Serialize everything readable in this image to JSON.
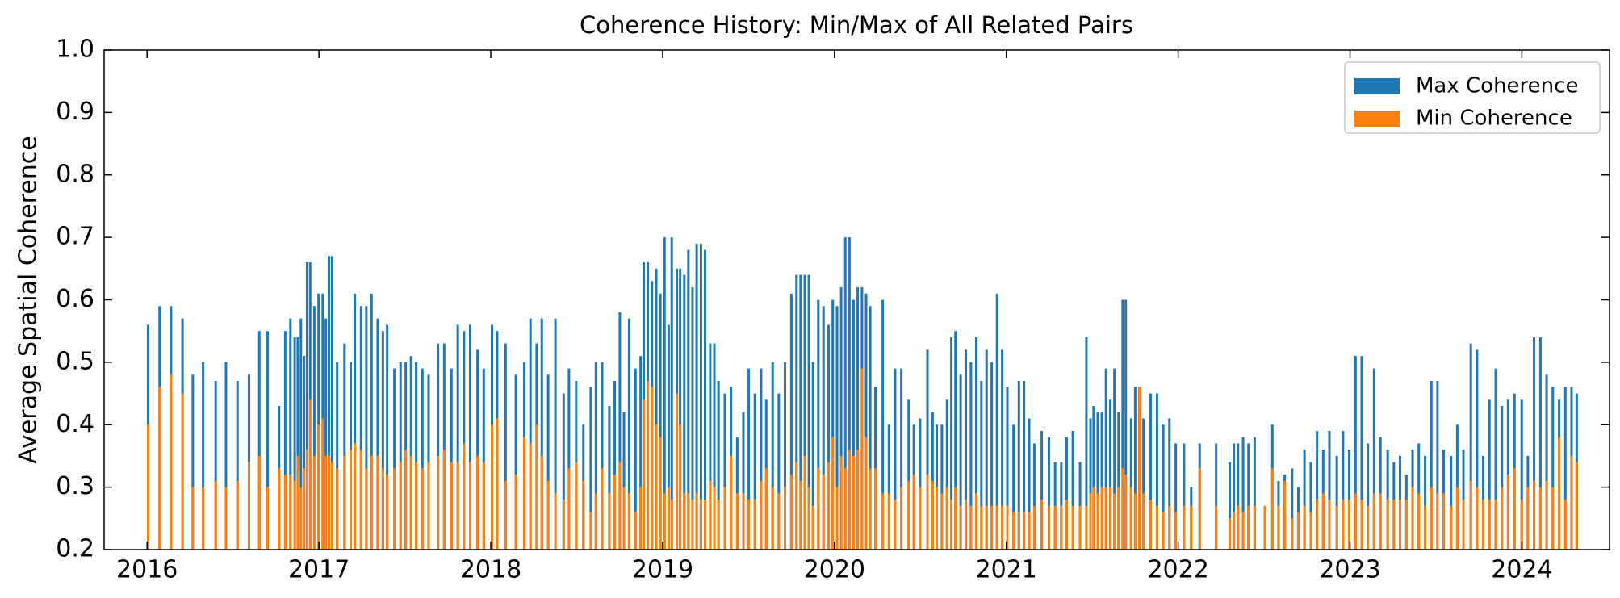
{
  "chart_data": {
    "type": "bar",
    "title": "Coherence History: Min/Max of All Related Pairs",
    "ylabel": "Average Spatial Coherence",
    "legend": "upper right",
    "xlim": [
      2015.75,
      2024.51
    ],
    "xticks": [
      2016,
      2017,
      2018,
      2019,
      2020,
      2021,
      2022,
      2023,
      2024
    ],
    "ylim": [
      0.2,
      1.0
    ],
    "yticks": [
      0.2,
      0.3,
      0.4,
      0.5,
      0.6,
      0.7,
      0.8,
      0.9,
      {
        "value": 1.0,
        "label": "1.0"
      }
    ],
    "x": [
      2016.006,
      2016.073,
      2016.139,
      2016.206,
      2016.266,
      2016.326,
      2016.399,
      2016.459,
      2016.526,
      2016.593,
      2016.653,
      2016.701,
      2016.768,
      2016.804,
      2016.834,
      2016.859,
      2016.877,
      2016.895,
      2016.913,
      2016.931,
      2016.949,
      2016.973,
      2016.998,
      2017.022,
      2017.04,
      2017.058,
      2017.076,
      2017.106,
      2017.149,
      2017.185,
      2017.209,
      2017.245,
      2017.276,
      2017.306,
      2017.342,
      2017.372,
      2017.397,
      2017.439,
      2017.475,
      2017.505,
      2017.536,
      2017.566,
      2017.602,
      2017.638,
      2017.693,
      2017.729,
      2017.771,
      2017.808,
      2017.844,
      2017.88,
      2017.923,
      2017.959,
      2018.007,
      2018.037,
      2018.086,
      2018.146,
      2018.195,
      2018.231,
      2018.267,
      2018.297,
      2018.334,
      2018.376,
      2018.424,
      2018.455,
      2018.497,
      2018.539,
      2018.582,
      2018.612,
      2018.648,
      2018.69,
      2018.721,
      2018.751,
      2018.775,
      2018.805,
      2018.842,
      2018.872,
      2018.89,
      2018.914,
      2018.938,
      2018.963,
      2018.987,
      2019.011,
      2019.035,
      2019.053,
      2019.083,
      2019.102,
      2019.126,
      2019.15,
      2019.174,
      2019.198,
      2019.223,
      2019.247,
      2019.277,
      2019.301,
      2019.325,
      2019.362,
      2019.398,
      2019.434,
      2019.47,
      2019.501,
      2019.537,
      2019.573,
      2019.603,
      2019.64,
      2019.676,
      2019.712,
      2019.749,
      2019.779,
      2019.803,
      2019.827,
      2019.851,
      2019.875,
      2019.906,
      2019.936,
      2019.966,
      2019.99,
      2020.015,
      2020.039,
      2020.063,
      2020.087,
      2020.111,
      2020.135,
      2020.16,
      2020.184,
      2020.208,
      2020.238,
      2020.281,
      2020.317,
      2020.353,
      2020.389,
      2020.432,
      2020.462,
      2020.498,
      2020.541,
      2020.571,
      2020.595,
      2020.625,
      2020.655,
      2020.68,
      2020.704,
      2020.734,
      2020.764,
      2020.794,
      2020.825,
      2020.855,
      2020.885,
      2020.915,
      2020.946,
      2020.976,
      2021.006,
      2021.042,
      2021.073,
      2021.103,
      2021.133,
      2021.163,
      2021.206,
      2021.248,
      2021.284,
      2021.32,
      2021.351,
      2021.387,
      2021.429,
      2021.466,
      2021.49,
      2021.508,
      2021.532,
      2021.556,
      2021.58,
      2021.605,
      2021.629,
      2021.653,
      2021.677,
      2021.695,
      2021.726,
      2021.75,
      2021.774,
      2021.798,
      2021.84,
      2021.877,
      2021.913,
      2021.949,
      2021.986,
      2022.034,
      2022.076,
      2022.125,
      2022.221,
      2022.3,
      2022.324,
      2022.348,
      2022.378,
      2022.409,
      2022.445,
      2022.505,
      2022.548,
      2022.584,
      2022.62,
      2022.663,
      2022.699,
      2022.735,
      2022.772,
      2022.808,
      2022.844,
      2022.88,
      2022.923,
      2022.959,
      2022.995,
      2023.032,
      2023.068,
      2023.104,
      2023.14,
      2023.177,
      2023.219,
      2023.255,
      2023.291,
      2023.328,
      2023.364,
      2023.4,
      2023.437,
      2023.473,
      2023.509,
      2023.545,
      2023.588,
      2023.624,
      2023.66,
      2023.703,
      2023.739,
      2023.775,
      2023.811,
      2023.848,
      2023.884,
      2023.92,
      2023.957,
      2023.999,
      2024.035,
      2024.071,
      2024.108,
      2024.144,
      2024.18,
      2024.217,
      2024.253,
      2024.289,
      2024.319
    ],
    "series": [
      {
        "name": "Max Coherence",
        "color": "#1f77b4",
        "values": [
          0.56,
          0.59,
          0.59,
          0.57,
          0.48,
          0.5,
          0.47,
          0.5,
          0.47,
          0.48,
          0.55,
          0.55,
          0.43,
          0.55,
          0.57,
          0.54,
          0.54,
          0.57,
          0.51,
          0.66,
          0.66,
          0.59,
          0.61,
          0.61,
          0.57,
          0.67,
          0.67,
          0.5,
          0.53,
          0.5,
          0.61,
          0.59,
          0.59,
          0.61,
          0.57,
          0.55,
          0.56,
          0.49,
          0.5,
          0.5,
          0.51,
          0.5,
          0.49,
          0.48,
          0.53,
          0.53,
          0.49,
          0.56,
          0.55,
          0.56,
          0.52,
          0.49,
          0.56,
          0.55,
          0.53,
          0.48,
          0.5,
          0.57,
          0.53,
          0.57,
          0.48,
          0.57,
          0.45,
          0.49,
          0.47,
          0.4,
          0.46,
          0.5,
          0.5,
          0.43,
          0.47,
          0.58,
          0.42,
          0.57,
          0.49,
          0.51,
          0.66,
          0.66,
          0.63,
          0.65,
          0.61,
          0.7,
          0.56,
          0.7,
          0.65,
          0.65,
          0.64,
          0.68,
          0.62,
          0.69,
          0.69,
          0.68,
          0.53,
          0.53,
          0.47,
          0.45,
          0.46,
          0.38,
          0.42,
          0.49,
          0.45,
          0.49,
          0.44,
          0.5,
          0.45,
          0.5,
          0.61,
          0.64,
          0.64,
          0.64,
          0.64,
          0.5,
          0.6,
          0.59,
          0.56,
          0.6,
          0.59,
          0.62,
          0.7,
          0.7,
          0.6,
          0.62,
          0.62,
          0.61,
          0.59,
          0.46,
          0.6,
          0.4,
          0.49,
          0.49,
          0.44,
          0.4,
          0.41,
          0.52,
          0.42,
          0.4,
          0.4,
          0.44,
          0.54,
          0.55,
          0.48,
          0.52,
          0.5,
          0.54,
          0.47,
          0.52,
          0.5,
          0.61,
          0.52,
          0.46,
          0.4,
          0.47,
          0.47,
          0.41,
          0.37,
          0.39,
          0.38,
          0.34,
          0.34,
          0.38,
          0.39,
          0.34,
          0.54,
          0.41,
          0.43,
          0.42,
          0.42,
          0.49,
          0.44,
          0.49,
          0.42,
          0.6,
          0.6,
          0.41,
          0.46,
          0.46,
          0.41,
          0.45,
          0.45,
          0.4,
          0.41,
          0.37,
          0.37,
          0.3,
          0.37,
          0.37,
          0.34,
          0.37,
          0.37,
          0.38,
          0.37,
          0.38,
          0.27,
          0.4,
          0.31,
          0.32,
          0.33,
          0.3,
          0.36,
          0.34,
          0.39,
          0.36,
          0.39,
          0.35,
          0.39,
          0.36,
          0.51,
          0.51,
          0.37,
          0.49,
          0.38,
          0.36,
          0.34,
          0.35,
          0.32,
          0.36,
          0.37,
          0.35,
          0.47,
          0.47,
          0.36,
          0.35,
          0.4,
          0.36,
          0.53,
          0.52,
          0.35,
          0.44,
          0.49,
          0.43,
          0.44,
          0.45,
          0.44,
          0.35,
          0.54,
          0.54,
          0.48,
          0.46,
          0.44,
          0.46,
          0.46,
          0.45
        ]
      },
      {
        "name": "Min Coherence",
        "color": "#ff7f0e",
        "values": [
          0.4,
          0.46,
          0.48,
          0.45,
          0.3,
          0.3,
          0.31,
          0.3,
          0.31,
          0.34,
          0.35,
          0.3,
          0.33,
          0.32,
          0.32,
          0.31,
          0.35,
          0.3,
          0.33,
          0.36,
          0.44,
          0.35,
          0.4,
          0.41,
          0.35,
          0.35,
          0.34,
          0.33,
          0.35,
          0.36,
          0.37,
          0.36,
          0.33,
          0.35,
          0.35,
          0.33,
          0.32,
          0.33,
          0.34,
          0.36,
          0.35,
          0.34,
          0.33,
          0.34,
          0.35,
          0.36,
          0.34,
          0.34,
          0.37,
          0.34,
          0.35,
          0.34,
          0.4,
          0.41,
          0.31,
          0.32,
          0.38,
          0.37,
          0.4,
          0.35,
          0.31,
          0.29,
          0.28,
          0.33,
          0.34,
          0.31,
          0.26,
          0.29,
          0.33,
          0.29,
          0.32,
          0.34,
          0.3,
          0.29,
          0.26,
          0.3,
          0.44,
          0.47,
          0.46,
          0.4,
          0.38,
          0.29,
          0.3,
          0.28,
          0.45,
          0.4,
          0.29,
          0.29,
          0.28,
          0.29,
          0.28,
          0.28,
          0.31,
          0.3,
          0.28,
          0.3,
          0.35,
          0.29,
          0.29,
          0.28,
          0.28,
          0.31,
          0.33,
          0.3,
          0.29,
          0.3,
          0.32,
          0.34,
          0.31,
          0.35,
          0.3,
          0.27,
          0.33,
          0.32,
          0.34,
          0.38,
          0.3,
          0.35,
          0.33,
          0.36,
          0.35,
          0.36,
          0.49,
          0.38,
          0.33,
          0.33,
          0.29,
          0.29,
          0.28,
          0.3,
          0.31,
          0.32,
          0.3,
          0.32,
          0.31,
          0.3,
          0.29,
          0.3,
          0.28,
          0.3,
          0.27,
          0.28,
          0.27,
          0.29,
          0.27,
          0.27,
          0.27,
          0.27,
          0.27,
          0.27,
          0.26,
          0.26,
          0.26,
          0.26,
          0.27,
          0.28,
          0.27,
          0.27,
          0.27,
          0.28,
          0.27,
          0.27,
          0.27,
          0.29,
          0.3,
          0.29,
          0.3,
          0.3,
          0.3,
          0.29,
          0.3,
          0.33,
          0.32,
          0.3,
          0.29,
          0.46,
          0.29,
          0.28,
          0.27,
          0.26,
          0.27,
          0.26,
          0.27,
          0.27,
          0.33,
          0.27,
          0.25,
          0.26,
          0.27,
          0.26,
          0.27,
          0.27,
          0.27,
          0.33,
          0.27,
          0.31,
          0.25,
          0.26,
          0.27,
          0.26,
          0.28,
          0.29,
          0.28,
          0.27,
          0.28,
          0.28,
          0.29,
          0.28,
          0.27,
          0.29,
          0.29,
          0.28,
          0.28,
          0.28,
          0.28,
          0.3,
          0.29,
          0.27,
          0.3,
          0.29,
          0.29,
          0.27,
          0.3,
          0.28,
          0.31,
          0.3,
          0.28,
          0.28,
          0.28,
          0.3,
          0.32,
          0.33,
          0.28,
          0.3,
          0.31,
          0.3,
          0.31,
          0.3,
          0.38,
          0.28,
          0.35,
          0.34
        ]
      }
    ]
  }
}
